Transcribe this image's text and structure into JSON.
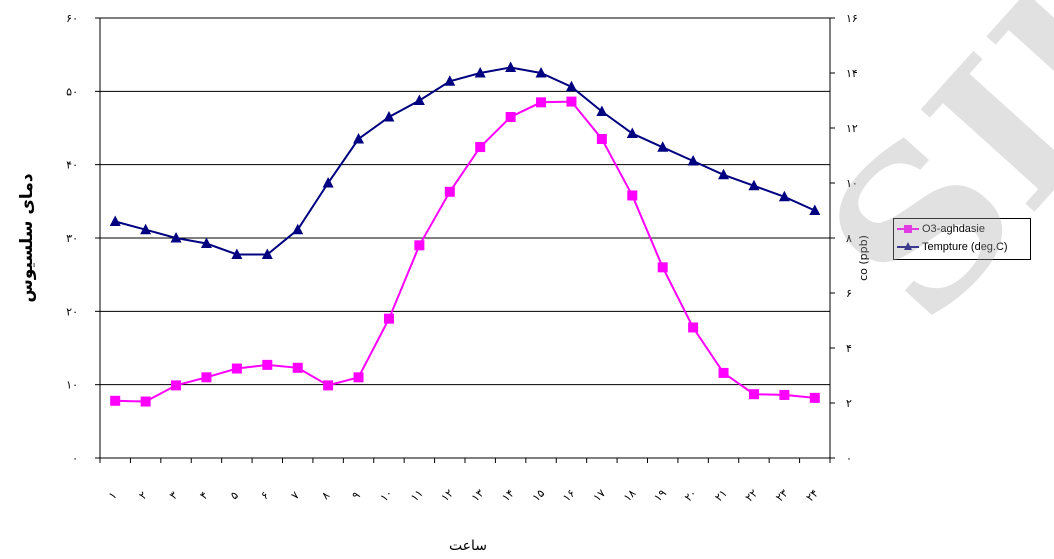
{
  "chart_data": {
    "type": "line",
    "categories": [
      "۱",
      "۲",
      "۳",
      "۴",
      "۵",
      "۶",
      "۷",
      "۸",
      "۹",
      "۱۰",
      "۱۱",
      "۱۲",
      "۱۳",
      "۱۴",
      "۱۵",
      "۱۶",
      "۱۷",
      "۱۸",
      "۱۹",
      "۲۰",
      "۲۱",
      "۲۲",
      "۲۳",
      "۲۴"
    ],
    "xlabel": "ساعت",
    "ylabel": "دمای سلسیوس",
    "y2label": "co (ppb)",
    "ylim": [
      0,
      60
    ],
    "y2lim": [
      0,
      16
    ],
    "yticks": [
      "۰",
      "۱۰",
      "۲۰",
      "۳۰",
      "۴۰",
      "۵۰",
      "۶۰"
    ],
    "y2ticks": [
      "۰",
      "۲",
      "۴",
      "۶",
      "۸",
      "۱۰",
      "۱۲",
      "۱۴",
      "۱۶"
    ],
    "grid": "horizontal",
    "legend_position": "right",
    "series": [
      {
        "name": "O3-aghdasie",
        "axis": "left",
        "color": "#FF00FF",
        "marker": "square",
        "values": [
          7.8,
          7.7,
          9.9,
          11.0,
          12.2,
          12.7,
          12.3,
          9.9,
          11.0,
          19.0,
          29.0,
          36.3,
          42.4,
          46.5,
          48.5,
          48.6,
          43.5,
          35.8,
          26.0,
          17.8,
          11.6,
          8.7,
          8.6,
          8.2
        ]
      },
      {
        "name": "Tempture (deg.C)",
        "axis": "right",
        "color": "#000080",
        "marker": "triangle",
        "values": [
          8.6,
          8.3,
          8.0,
          7.8,
          7.4,
          7.4,
          8.3,
          10.0,
          11.6,
          12.4,
          13.0,
          13.7,
          14.0,
          14.2,
          14.0,
          13.5,
          12.6,
          11.8,
          11.3,
          10.8,
          10.3,
          9.9,
          9.5,
          9.0
        ]
      }
    ]
  },
  "watermark": "SID"
}
